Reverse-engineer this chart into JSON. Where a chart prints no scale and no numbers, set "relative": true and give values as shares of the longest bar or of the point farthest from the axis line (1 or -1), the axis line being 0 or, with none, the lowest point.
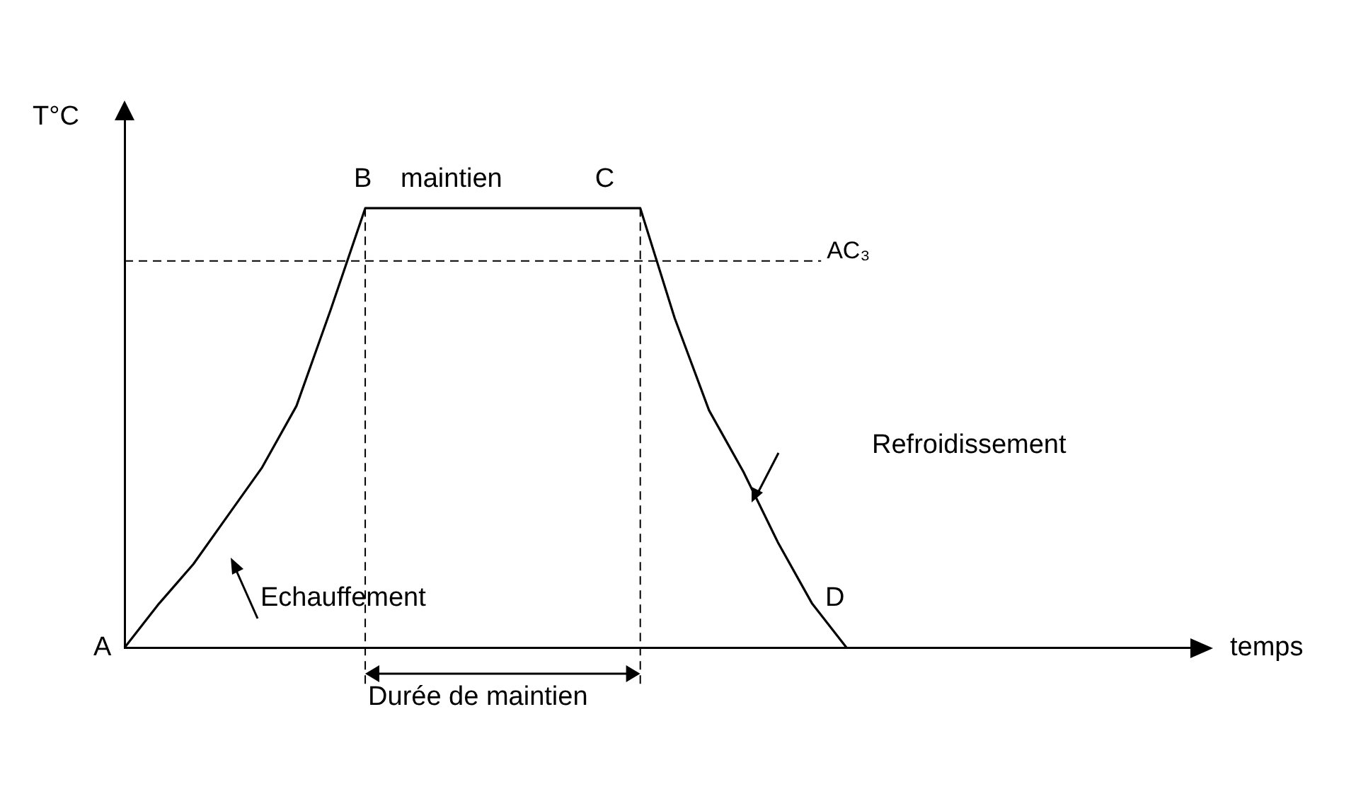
{
  "chart_data": {
    "type": "line",
    "relative": true,
    "categories": [
      null,
      null,
      null,
      null,
      null,
      null,
      null,
      null,
      null,
      null,
      null,
      null,
      null,
      null,
      null,
      null,
      null,
      null,
      null,
      null,
      null,
      null,
      null,
      null,
      null,
      null,
      null,
      null,
      null,
      null,
      null,
      null
    ],
    "series": [
      {
        "color": "#000000",
        "values": [
          0,
          0.1,
          0.19,
          0.3,
          0.41,
          0.55,
          0.77,
          1,
          1,
          1,
          1,
          1,
          1,
          1,
          1,
          1,
          0.75,
          0.54,
          0.4,
          0.24,
          0.1,
          0,
          null,
          null,
          null,
          null,
          null,
          null,
          null,
          null,
          null,
          null
        ]
      }
    ],
    "xlabel": "temps",
    "ylabel": "T°C",
    "ref_lines": [
      {
        "axis": "y",
        "value": 0.88,
        "label": "AC₃",
        "color": "#000000",
        "line_style": "dashed"
      }
    ],
    "annotations": [
      "A",
      "B",
      "maintien",
      "C",
      "D",
      "Echauffement",
      "Refroidissement",
      "Durée de maintien"
    ],
    "grid": false,
    "legend": false,
    "marker": "none",
    "line_style": "solid"
  }
}
